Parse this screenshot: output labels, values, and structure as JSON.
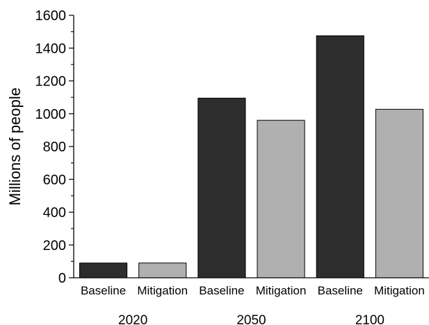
{
  "chart_data": {
    "type": "bar",
    "ylabel": "Millions of people",
    "ylim": [
      0,
      1600
    ],
    "yticks": [
      "0",
      "200",
      "400",
      "600",
      "800",
      "1000",
      "1200",
      "1400",
      "1600"
    ],
    "grid": false,
    "bars": [
      {
        "group": "2020",
        "category": "Baseline",
        "value": 90,
        "color": "#2d2d2d"
      },
      {
        "group": "2020",
        "category": "Mitigation",
        "value": 90,
        "color": "#b0b0b0"
      },
      {
        "group": "2050",
        "category": "Baseline",
        "value": 1095,
        "color": "#2d2d2d"
      },
      {
        "group": "2050",
        "category": "Mitigation",
        "value": 960,
        "color": "#b0b0b0"
      },
      {
        "group": "2100",
        "category": "Baseline",
        "value": 1475,
        "color": "#2d2d2d"
      },
      {
        "group": "2100",
        "category": "Mitigation",
        "value": 1027,
        "color": "#b0b0b0"
      }
    ],
    "groups": [
      "2020",
      "2050",
      "2100"
    ]
  }
}
